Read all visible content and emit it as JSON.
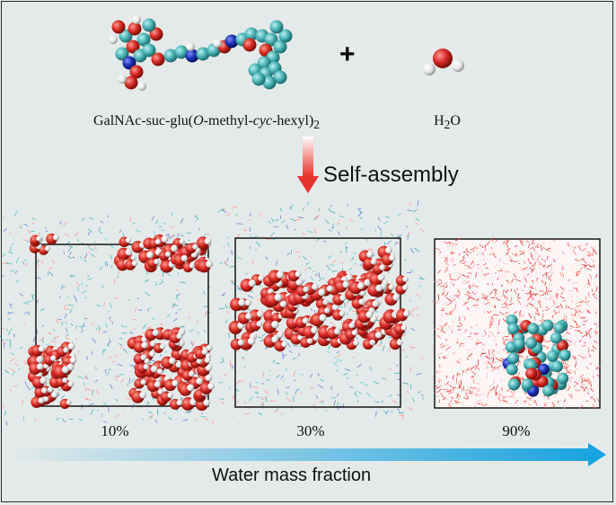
{
  "molecule_label": {
    "prefix": "GalNAc-suc-glu(",
    "o": "O",
    "middle": "-methyl-",
    "cyc": "cyc",
    "suffix": "-hexyl)",
    "subscript": "2"
  },
  "plus_sign": "+",
  "water_label": {
    "h": "H",
    "sub": "2",
    "o": "O"
  },
  "process_label": "Self-assembly",
  "panels": [
    {
      "label": "10%"
    },
    {
      "label": "30%"
    },
    {
      "label": "90%"
    }
  ],
  "axis_label": "Water mass fraction",
  "colors": {
    "oxygen": "#d42a24",
    "hydrogen": "#f2f2f2",
    "carbon": "#4bb3b4",
    "nitrogen": "#1d2fb0",
    "arrow_blue": "#1aa3e0",
    "arrow_red": "#e8332c",
    "background": "#e4eae9"
  }
}
